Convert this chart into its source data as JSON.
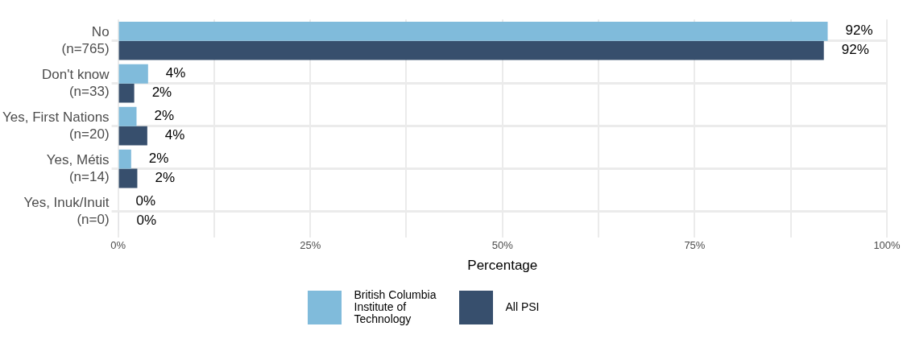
{
  "chart_data": {
    "type": "bar",
    "orientation": "horizontal",
    "categories": [
      "No\n(n=765)",
      "Don't know\n(n=33)",
      "Yes, First Nations\n(n=20)",
      "Yes, Métis\n(n=14)",
      "Yes, Inuk/Inuit\n(n=0)"
    ],
    "series": [
      {
        "name": "British Columbia Institute of Technology",
        "color": "#80bbdb",
        "values": [
          92.3,
          3.9,
          2.4,
          1.7,
          0
        ],
        "value_labels": [
          "92%",
          "4%",
          "2%",
          "2%",
          "0%"
        ]
      },
      {
        "name": "All PSI",
        "color": "#374f6d",
        "values": [
          91.8,
          2.1,
          3.8,
          2.5,
          0.1
        ],
        "value_labels": [
          "92%",
          "2%",
          "4%",
          "2%",
          "0%"
        ]
      }
    ],
    "xlabel": "Percentage",
    "xlim": [
      0,
      100
    ],
    "xticks": [
      {
        "value": 0,
        "label": "0%"
      },
      {
        "value": 12.5,
        "label": null
      },
      {
        "value": 25,
        "label": "25%"
      },
      {
        "value": 37.5,
        "label": null
      },
      {
        "value": 50,
        "label": "50%"
      },
      {
        "value": 62.5,
        "label": null
      },
      {
        "value": 75,
        "label": "75%"
      },
      {
        "value": 87.5,
        "label": null
      },
      {
        "value": 100,
        "label": "100%"
      }
    ],
    "grid": true,
    "legend": "bottom"
  }
}
